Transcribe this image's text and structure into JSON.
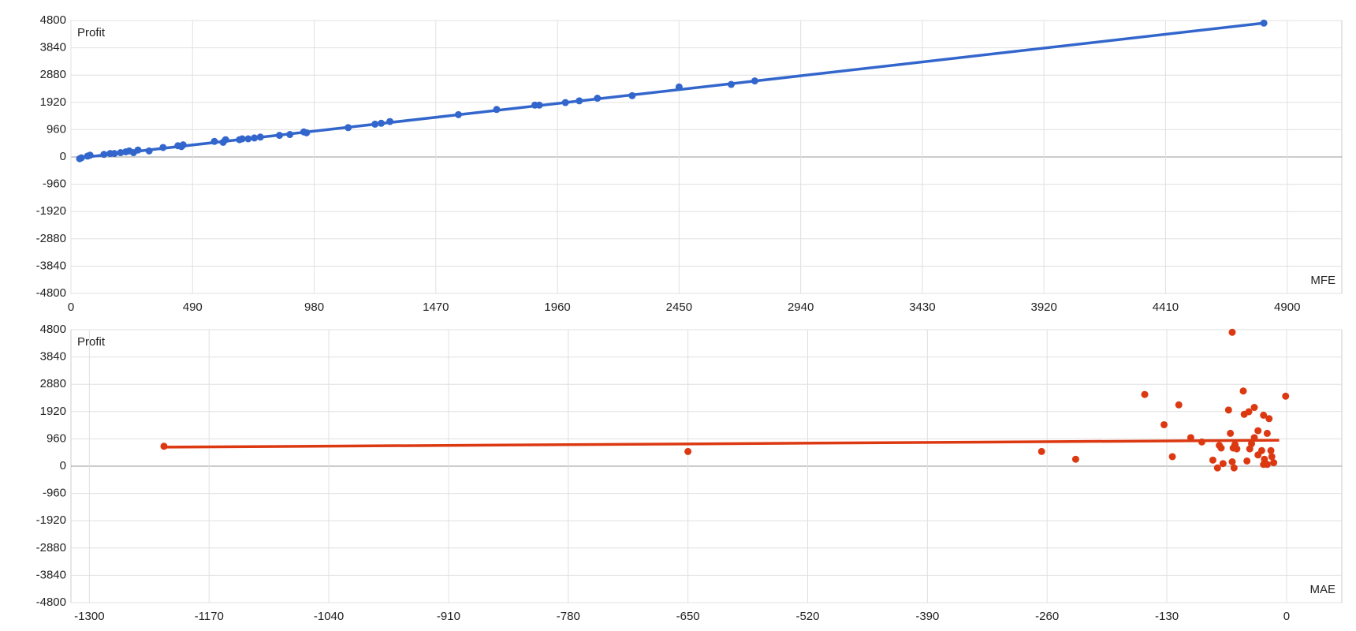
{
  "chart_data": [
    {
      "type": "scatter",
      "y_label": "Profit",
      "x_label": "MFE",
      "xlim": [
        0,
        5120
      ],
      "ylim": [
        -4800,
        4800
      ],
      "xticks": [
        0,
        490,
        980,
        1470,
        1960,
        2450,
        2940,
        3430,
        3920,
        4410,
        4900
      ],
      "yticks": [
        -4800,
        -3840,
        -2880,
        -1920,
        -960,
        0,
        960,
        1920,
        2880,
        3840,
        4800
      ],
      "grid": true,
      "series": [
        {
          "color": "#3366cc",
          "x": [
            35,
            42,
            67,
            77,
            133,
            158,
            175,
            200,
            221,
            235,
            252,
            270,
            315,
            371,
            431,
            445,
            452,
            578,
            613,
            623,
            679,
            690,
            714,
            739,
            763,
            840,
            882,
            938,
            949,
            1117,
            1225,
            1250,
            1285,
            1561,
            1715,
            1869,
            1887,
            1992,
            2048,
            2121,
            2261,
            2450,
            2660,
            2755,
            4806
          ],
          "values": [
            -61,
            -30,
            30,
            61,
            91,
            122,
            122,
            152,
            182,
            213,
            152,
            243,
            213,
            334,
            395,
            365,
            425,
            547,
            516,
            608,
            608,
            638,
            638,
            668,
            699,
            760,
            790,
            881,
            851,
            1033,
            1154,
            1185,
            1246,
            1489,
            1671,
            1823,
            1823,
            1914,
            1975,
            2066,
            2157,
            2461,
            2552,
            2674,
            4709
          ]
        }
      ],
      "trendline": {
        "color": "#3366cc",
        "x": [
          35,
          4806
        ],
        "values": [
          -30,
          4709
        ]
      }
    },
    {
      "type": "scatter",
      "y_label": "Profit",
      "x_label": "MAE",
      "xlim": [
        -1320,
        60
      ],
      "ylim": [
        -4800,
        4800
      ],
      "xticks": [
        -1300,
        -1170,
        -1040,
        -910,
        -780,
        -650,
        -520,
        -390,
        -260,
        -130,
        0
      ],
      "yticks": [
        -4800,
        -3840,
        -2880,
        -1920,
        -960,
        0,
        960,
        1920,
        2880,
        3840,
        4800
      ],
      "grid": true,
      "series": [
        {
          "color": "#dc3912",
          "x": [
            -1219,
            -650,
            -266,
            -229,
            -154,
            -133,
            -124,
            -117,
            -104,
            -92,
            -80,
            -75,
            -73,
            -71,
            -69,
            -63,
            -61,
            -59,
            -59,
            -58,
            -57,
            -56,
            -54,
            -47,
            -46,
            -43,
            -41,
            -40,
            -38,
            -35,
            -35,
            -31,
            -31,
            -27,
            -25,
            -25,
            -24,
            -21,
            -21,
            -19,
            -17,
            -16,
            -14,
            -1
          ],
          "values": [
            699,
            516,
            516,
            243,
            2522,
            1458,
            334,
            2157,
            1003,
            851,
            213,
            -61,
            729,
            638,
            91,
            1975,
            1154,
            4709,
            152,
            638,
            -61,
            760,
            608,
            2643,
            1823,
            182,
            1914,
            608,
            790,
            2066,
            1003,
            1246,
            395,
            547,
            61,
            1792,
            243,
            1154,
            61,
            1671,
            547,
            334,
            122,
            2461
          ]
        }
      ],
      "trendline": {
        "color": "#dc3912",
        "x": [
          -1219,
          -8
        ],
        "values": [
          668,
          911
        ]
      }
    }
  ]
}
